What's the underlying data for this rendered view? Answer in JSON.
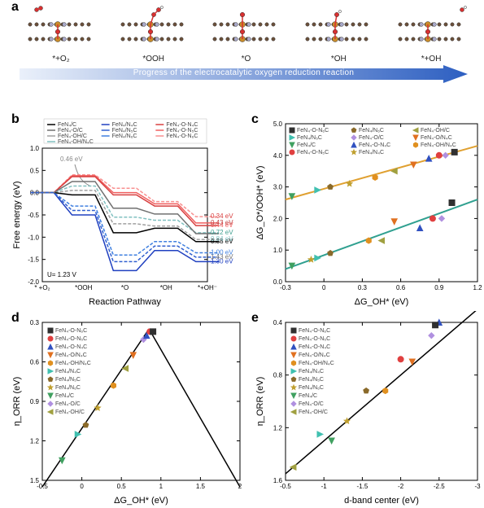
{
  "panel_a": {
    "label": "a",
    "structures": [
      {
        "caption": "*+O₂"
      },
      {
        "caption": "*OOH"
      },
      {
        "caption": "*O"
      },
      {
        "caption": "*OH"
      },
      {
        "caption": "*+OH"
      }
    ],
    "arrow": {
      "text": "Progress of the electrocatalytic oxygen reduction reaction",
      "gradient_start": "#eaf0fa",
      "gradient_end": "#2d5fc1"
    },
    "atom_colors": {
      "C": "#6b503a",
      "N": "#a8a8c8",
      "Fe": "#c98c2a",
      "O": "#d93030",
      "H": "#f3f3f3"
    }
  },
  "panel_b": {
    "label": "b",
    "xlabel": "Reaction Pathway",
    "ylabel": "Free energy (eV)",
    "categories": [
      "* +O₂",
      "*OOH",
      "*O",
      "*OH",
      "*+OH⁻"
    ],
    "ylim": [
      -2.0,
      1.0
    ],
    "yticks": [
      -2.0,
      -1.5,
      -1.0,
      -0.5,
      0.0,
      0.5,
      1.0
    ],
    "potential_label": "U= 1.23 V",
    "arrow_ann": {
      "text": "0.46 eV",
      "color": "#888888"
    },
    "legend_top": [
      {
        "name": "FeN₄/C",
        "color": "#000000"
      },
      {
        "name": "FeN₄/N₄C",
        "color": "#2040c0"
      },
      {
        "name": "FeN₄-O-N₄C",
        "color": "#d84040"
      },
      {
        "name": "FeN₄-O/C",
        "color": "#707070"
      },
      {
        "name": "FeN₄/N₅C",
        "color": "#3060d0"
      },
      {
        "name": "FeN₄-O-N₅C",
        "color": "#f06060"
      },
      {
        "name": "FeN₄-OH/C",
        "color": "#a0a0a0"
      },
      {
        "name": "FeN₄/N₆C",
        "color": "#4080e0"
      },
      {
        "name": "FeN₄-O-N₆C",
        "color": "#f89090"
      },
      {
        "name": "FeN₄-OH/N₄C",
        "color": "#80c0c0"
      }
    ],
    "series": [
      {
        "name": "FeN4-O-N6C",
        "color": "#f89090",
        "dash": "4 2",
        "y": [
          0.0,
          0.4,
          0.1,
          -0.2,
          -0.54
        ],
        "ann": "0.34 eV"
      },
      {
        "name": "FeN4-O-N5C",
        "color": "#f06060",
        "dash": null,
        "y": [
          0.0,
          0.38,
          0.0,
          -0.25,
          -0.68
        ],
        "ann": "0.43 eV"
      },
      {
        "name": "FeN4-O-N4C",
        "color": "#d84040",
        "dash": null,
        "y": [
          0.0,
          0.36,
          -0.05,
          -0.3,
          -0.74
        ],
        "ann": "0.44 eV"
      },
      {
        "name": "FeN4-OH/N4C",
        "color": "#80c0c0",
        "dash": "4 2",
        "y": [
          0.0,
          0.15,
          -0.55,
          -0.62,
          -0.9
        ],
        "ann": "0.72 eV"
      },
      {
        "name": "FeN4-OH/C",
        "color": "#a0a0a0",
        "dash": "4 2",
        "y": [
          0.0,
          0.05,
          -0.7,
          -0.75,
          -1.05
        ],
        "ann": "0.84 eV"
      },
      {
        "name": "FeN4/C",
        "color": "#000000",
        "dash": null,
        "y": [
          0.0,
          -0.05,
          -0.9,
          -0.8,
          -1.1
        ],
        "ann": "0.88 eV"
      },
      {
        "name": "FeN4/N6C",
        "color": "#4080e0",
        "dash": "4 2",
        "y": [
          0.0,
          -0.3,
          -1.4,
          -1.1,
          -1.35
        ],
        "ann": "1.00 eV"
      },
      {
        "name": "FeN4/N4C",
        "color": "#2040c0",
        "dash": null,
        "y": [
          0.0,
          -0.5,
          -1.75,
          -1.3,
          -1.55
        ],
        "ann": "1.30 eV"
      },
      {
        "name": "FeN4-O/C",
        "color": "#707070",
        "dash": null,
        "y": [
          0.0,
          0.25,
          -0.35,
          -0.48,
          -0.92
        ]
      },
      {
        "name": "FeN4/N5C",
        "color": "#3060d0",
        "dash": "4 2",
        "y": [
          0.0,
          -0.4,
          -1.55,
          -1.2,
          -1.45
        ],
        "ann": "1.43 eV"
      }
    ],
    "ann_colors": {
      "0.34 eV": "#d84040",
      "0.43 eV": "#c04040",
      "0.44 eV": "#f06060",
      "0.72 eV": "#40a090",
      "0.84 eV": "#80c0c0",
      "0.88 eV": "#000000",
      "1.00 eV": "#4080e0",
      "1.30 eV": "#2040c0",
      "1.43 eV": "#707070"
    }
  },
  "panel_c": {
    "label": "c",
    "xlabel": "ΔG_OH* (eV)",
    "ylabel": "ΔG_O*/OOH* (eV)",
    "xlim": [
      -0.3,
      1.2
    ],
    "ylim": [
      0,
      5
    ],
    "xticks": [
      -0.3,
      0.0,
      0.3,
      0.6,
      0.9,
      1.2
    ],
    "yticks": [
      0,
      1,
      2,
      3,
      4,
      5
    ],
    "line_top": {
      "color": "#e0a030",
      "x": [
        -0.3,
        1.2
      ],
      "y": [
        2.6,
        4.3
      ]
    },
    "line_bot": {
      "color": "#30a090",
      "x": [
        -0.3,
        1.2
      ],
      "y": [
        0.4,
        2.6
      ]
    },
    "legend": [
      {
        "name": "FeN₄-O-N₆C",
        "shape": "square",
        "color": "#303030"
      },
      {
        "name": "FeN₄/N₅C",
        "shape": "tri-r",
        "color": "#40c0b0"
      },
      {
        "name": "FeN₄/C",
        "shape": "tri-d",
        "color": "#40a060"
      },
      {
        "name": "FeN₄-O-N₅C",
        "shape": "circle",
        "color": "#e04040"
      },
      {
        "name": "FeN₄/N₆C",
        "shape": "pentagon",
        "color": "#8a6a2a"
      },
      {
        "name": "FeN₄-O/C",
        "shape": "diamond",
        "color": "#b090e0"
      },
      {
        "name": "FeN₄-O-N₄C",
        "shape": "tri-u",
        "color": "#3050c0"
      },
      {
        "name": "FeN₄/N₄C",
        "shape": "star",
        "color": "#c0a030"
      },
      {
        "name": "FeN₄-OH/C",
        "shape": "tri-l",
        "color": "#a0a040"
      },
      {
        "name": "FeN₄-O/N₄C",
        "shape": "tri-d",
        "color": "#e07020"
      },
      {
        "name": "FeN₄-OH/N₄C",
        "shape": "hex",
        "color": "#e09020"
      }
    ],
    "points_top": [
      {
        "x": -0.25,
        "y": 2.7,
        "color": "#40a060",
        "shape": "tri-d"
      },
      {
        "x": -0.05,
        "y": 2.9,
        "color": "#40c0b0",
        "shape": "tri-r"
      },
      {
        "x": 0.05,
        "y": 3.0,
        "color": "#8a6a2a",
        "shape": "pentagon"
      },
      {
        "x": 0.2,
        "y": 3.1,
        "color": "#c0a030",
        "shape": "star"
      },
      {
        "x": 0.4,
        "y": 3.3,
        "color": "#e09020",
        "shape": "hex"
      },
      {
        "x": 0.55,
        "y": 3.5,
        "color": "#a0a040",
        "shape": "tri-l"
      },
      {
        "x": 0.7,
        "y": 3.7,
        "color": "#e07020",
        "shape": "tri-d"
      },
      {
        "x": 0.82,
        "y": 3.9,
        "color": "#3050c0",
        "shape": "tri-u"
      },
      {
        "x": 0.9,
        "y": 4.0,
        "color": "#e04040",
        "shape": "circle"
      },
      {
        "x": 0.95,
        "y": 4.0,
        "color": "#b090e0",
        "shape": "diamond"
      },
      {
        "x": 1.02,
        "y": 4.1,
        "color": "#303030",
        "shape": "square"
      }
    ],
    "points_bot": [
      {
        "x": -0.25,
        "y": 0.5,
        "color": "#40a060",
        "shape": "tri-d"
      },
      {
        "x": -0.1,
        "y": 0.7,
        "color": "#c0a030",
        "shape": "star"
      },
      {
        "x": -0.05,
        "y": 0.75,
        "color": "#40c0b0",
        "shape": "tri-r"
      },
      {
        "x": 0.05,
        "y": 0.9,
        "color": "#8a6a2a",
        "shape": "pentagon"
      },
      {
        "x": 0.35,
        "y": 1.3,
        "color": "#e09020",
        "shape": "hex"
      },
      {
        "x": 0.45,
        "y": 1.3,
        "color": "#a0a040",
        "shape": "tri-l"
      },
      {
        "x": 0.55,
        "y": 1.9,
        "color": "#e07020",
        "shape": "tri-d"
      },
      {
        "x": 0.75,
        "y": 1.7,
        "color": "#3050c0",
        "shape": "tri-u"
      },
      {
        "x": 0.85,
        "y": 2.0,
        "color": "#e04040",
        "shape": "circle"
      },
      {
        "x": 0.92,
        "y": 2.0,
        "color": "#b090e0",
        "shape": "diamond"
      },
      {
        "x": 1.0,
        "y": 2.5,
        "color": "#303030",
        "shape": "square"
      }
    ]
  },
  "panel_d": {
    "label": "d",
    "xlabel": "ΔG_OH* (eV)",
    "ylabel": "η_ORR (eV)",
    "xlim": [
      -0.5,
      2.0
    ],
    "ylim_inv": [
      1.5,
      0.3
    ],
    "xticks": [
      -0.5,
      0.0,
      0.5,
      1.0,
      1.5,
      2.0
    ],
    "yticks": [
      0.3,
      0.6,
      0.9,
      1.2,
      1.5
    ],
    "volcano_left": {
      "color": "#000000",
      "x": [
        -0.5,
        0.85
      ],
      "y": [
        1.55,
        0.35
      ]
    },
    "volcano_right": {
      "color": "#000000",
      "x": [
        0.85,
        2.0
      ],
      "y": [
        0.35,
        1.55
      ]
    },
    "legend": [
      {
        "name": "FeN₄-O-N₆C",
        "shape": "square",
        "color": "#303030"
      },
      {
        "name": "FeN₄-O-N₅C",
        "shape": "circle",
        "color": "#e04040"
      },
      {
        "name": "FeN₄-O-N₄C",
        "shape": "tri-u",
        "color": "#3050c0"
      },
      {
        "name": "FeN₄-O/N₄C",
        "shape": "tri-d",
        "color": "#e07020"
      },
      {
        "name": "FeN₄-OH/N₄C",
        "shape": "hex",
        "color": "#e09020"
      },
      {
        "name": "FeN₄/N₄C",
        "shape": "tri-r",
        "color": "#40c0b0"
      },
      {
        "name": "FeN₄/N₅C",
        "shape": "pentagon",
        "color": "#8a6a2a"
      },
      {
        "name": "FeN₄/N₆C",
        "shape": "star",
        "color": "#c0a030"
      },
      {
        "name": "FeN₄/C",
        "shape": "tri-d",
        "color": "#40a060"
      },
      {
        "name": "FeN₄-O/C",
        "shape": "diamond",
        "color": "#b090e0"
      },
      {
        "name": "FeN₄-OH/C",
        "shape": "tri-l",
        "color": "#a0a040"
      }
    ],
    "points": [
      {
        "x": -0.25,
        "y": 1.35,
        "color": "#40a060",
        "shape": "tri-d"
      },
      {
        "x": -0.05,
        "y": 1.15,
        "color": "#40c0b0",
        "shape": "tri-r"
      },
      {
        "x": 0.05,
        "y": 1.08,
        "color": "#8a6a2a",
        "shape": "pentagon"
      },
      {
        "x": 0.2,
        "y": 0.95,
        "color": "#c0a030",
        "shape": "star"
      },
      {
        "x": 0.4,
        "y": 0.78,
        "color": "#e09020",
        "shape": "hex"
      },
      {
        "x": 0.55,
        "y": 0.65,
        "color": "#a0a040",
        "shape": "tri-l"
      },
      {
        "x": 0.65,
        "y": 0.55,
        "color": "#e07020",
        "shape": "tri-d"
      },
      {
        "x": 0.78,
        "y": 0.43,
        "color": "#b090e0",
        "shape": "diamond"
      },
      {
        "x": 0.82,
        "y": 0.4,
        "color": "#3050c0",
        "shape": "tri-u"
      },
      {
        "x": 0.86,
        "y": 0.37,
        "color": "#e04040",
        "shape": "circle"
      },
      {
        "x": 0.9,
        "y": 0.37,
        "color": "#303030",
        "shape": "square"
      }
    ]
  },
  "panel_e": {
    "label": "e",
    "xlabel": "d-band center (eV)",
    "ylabel": "η_ORR (eV)",
    "xlim": [
      -0.5,
      -3.0
    ],
    "ylim_inv": [
      1.6,
      0.4
    ],
    "xticks": [
      -0.5,
      -1.0,
      -1.5,
      -2.0,
      -2.5,
      -3.0
    ],
    "yticks": [
      0.4,
      0.8,
      1.2,
      1.6
    ],
    "fit": {
      "color": "#000000",
      "x": [
        -0.5,
        -3.0
      ],
      "y": [
        1.55,
        0.3
      ]
    },
    "legend": [
      {
        "name": "FeN₄-O-N₆C",
        "shape": "square",
        "color": "#303030"
      },
      {
        "name": "FeN₄-O-N₅C",
        "shape": "circle",
        "color": "#e04040"
      },
      {
        "name": "FeN₄-O-N₄C",
        "shape": "tri-u",
        "color": "#3050c0"
      },
      {
        "name": "FeN₄-O/N₄C",
        "shape": "tri-d",
        "color": "#e07020"
      },
      {
        "name": "FeN₄-OH/N₄C",
        "shape": "hex",
        "color": "#e09020"
      },
      {
        "name": "FeN₄/N₄C",
        "shape": "tri-r",
        "color": "#40c0b0"
      },
      {
        "name": "FeN₄/N₅C",
        "shape": "pentagon",
        "color": "#8a6a2a"
      },
      {
        "name": "FeN₄/N₆C",
        "shape": "star",
        "color": "#c0a030"
      },
      {
        "name": "FeN₄/C",
        "shape": "tri-d",
        "color": "#40a060"
      },
      {
        "name": "FeN₄-O/C",
        "shape": "diamond",
        "color": "#b090e0"
      },
      {
        "name": "FeN₄-OH/C",
        "shape": "tri-l",
        "color": "#a0a040"
      }
    ],
    "points": [
      {
        "x": -0.6,
        "y": 1.5,
        "color": "#a0a040",
        "shape": "tri-l"
      },
      {
        "x": -0.95,
        "y": 1.25,
        "color": "#40c0b0",
        "shape": "tri-r"
      },
      {
        "x": -1.1,
        "y": 1.3,
        "color": "#40a060",
        "shape": "tri-d"
      },
      {
        "x": -1.3,
        "y": 1.15,
        "color": "#c0a030",
        "shape": "star"
      },
      {
        "x": -1.55,
        "y": 0.92,
        "color": "#8a6a2a",
        "shape": "pentagon"
      },
      {
        "x": -1.8,
        "y": 0.92,
        "color": "#e09020",
        "shape": "hex"
      },
      {
        "x": -2.0,
        "y": 0.68,
        "color": "#e04040",
        "shape": "circle"
      },
      {
        "x": -2.15,
        "y": 0.7,
        "color": "#e07020",
        "shape": "tri-d"
      },
      {
        "x": -2.4,
        "y": 0.5,
        "color": "#b090e0",
        "shape": "diamond"
      },
      {
        "x": -2.5,
        "y": 0.4,
        "color": "#3050c0",
        "shape": "tri-u"
      },
      {
        "x": -2.45,
        "y": 0.42,
        "color": "#303030",
        "shape": "square"
      }
    ]
  }
}
